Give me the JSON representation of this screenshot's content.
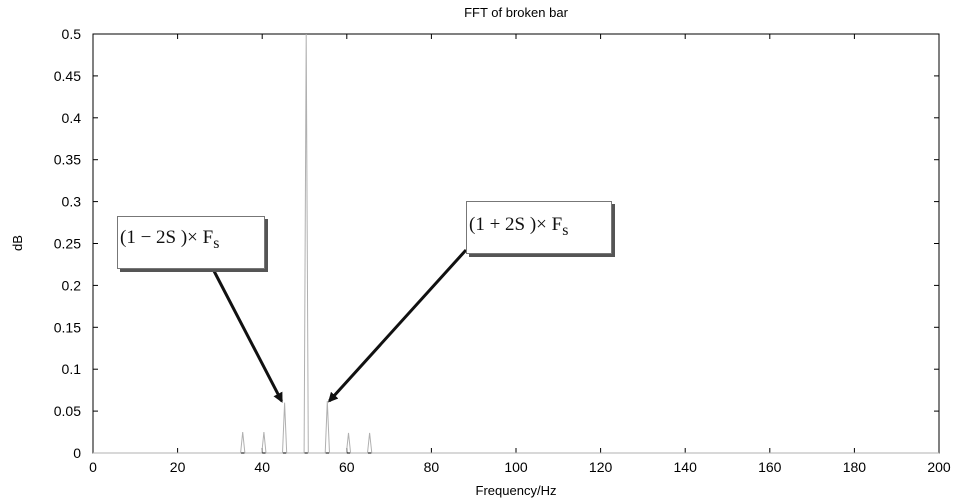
{
  "chart_data": {
    "type": "line",
    "title": "FFT of broken bar",
    "xlabel": "Frequency/Hz",
    "ylabel": "dB",
    "xlim": [
      0,
      200
    ],
    "ylim": [
      0,
      0.5
    ],
    "xticks": [
      "0",
      "20",
      "40",
      "60",
      "80",
      "100",
      "120",
      "140",
      "160",
      "180",
      "200"
    ],
    "yticks": [
      "0",
      "0.05",
      "0.1",
      "0.15",
      "0.2",
      "0.25",
      "0.3",
      "0.35",
      "0.4",
      "0.45",
      "0.5"
    ],
    "grid": false,
    "legend": "none",
    "line_color": "#b0b0b0",
    "series": [
      {
        "x": [
          0,
          34.9,
          35.4,
          35.9,
          39.9,
          40.4,
          40.9,
          44.8,
          45.3,
          45.8,
          49.9,
          50.4,
          50.9,
          54.9,
          55.4,
          55.9,
          59.9,
          60.4,
          60.9,
          64.9,
          65.4,
          65.9,
          200
        ],
        "y": [
          0,
          0,
          0.025,
          0,
          0,
          0.025,
          0,
          0,
          0.06,
          0,
          0,
          0.5,
          0,
          0,
          0.062,
          0,
          0,
          0.024,
          0,
          0,
          0.024,
          0,
          0
        ]
      }
    ],
    "annotations": [
      {
        "text": "(1 − 2S )× F",
        "subscript": "s",
        "arrow_to": [
          45.3,
          0.062
        ]
      },
      {
        "text": "(1 + 2S )× F",
        "subscript": "s",
        "arrow_to": [
          55.4,
          0.062
        ]
      }
    ]
  }
}
